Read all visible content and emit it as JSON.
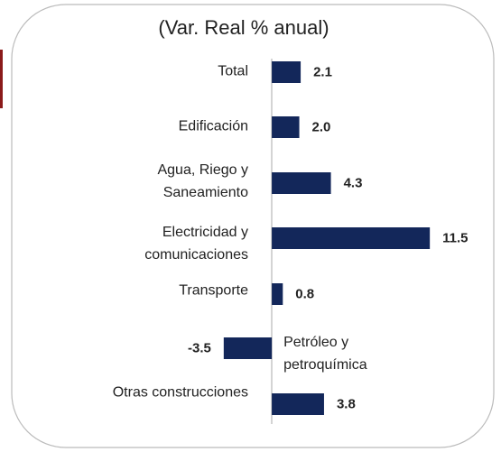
{
  "chart_data": {
    "type": "bar",
    "orientation": "horizontal",
    "title": "(Var. Real % anual)",
    "categories": [
      "Total",
      "Edificación",
      "Agua, Riego y\nSaneamiento",
      "Electricidad y\ncomunicaciones",
      "Transporte",
      "Petróleo y\npetroquímica",
      "Otras construcciones"
    ],
    "values": [
      2.1,
      2.0,
      4.3,
      11.5,
      0.8,
      -3.5,
      3.8
    ],
    "value_labels": [
      "2.1",
      "2.0",
      "4.3",
      "11.5",
      "0.8",
      "-3.5",
      "3.8"
    ],
    "color": "#13275a",
    "xlim": [
      -5,
      13
    ]
  }
}
